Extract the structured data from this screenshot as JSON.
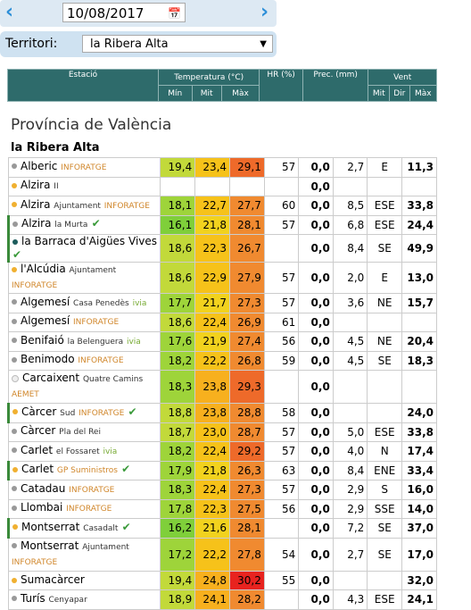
{
  "header": {
    "date": "10/08/2017",
    "territory_label": "Territori:",
    "territory": "la Ribera Alta"
  },
  "table": {
    "columns": {
      "station": "Estació",
      "temperature": "Temperatura (°C)",
      "humidity": "HR (%)",
      "precipitation": "Prec. (mm)",
      "wind": "Vent"
    },
    "subcolumns": [
      "Mín",
      "Mit",
      "Màx",
      "Mit",
      "Dir",
      "Màx"
    ],
    "province": "Província de València",
    "region": "la Ribera Alta",
    "rows": [
      {
        "name": "Alberic",
        "tag": "INFORATGE",
        "dot": "#999",
        "cells": [
          "19,4",
          "23,4",
          "29,1",
          "57",
          "0,0",
          "2,7",
          "E",
          "11,3"
        ]
      },
      {
        "name": "Alzira",
        "sub": "II",
        "dot": "#f0b030",
        "cells": [
          null,
          null,
          null,
          null,
          "0,0",
          null,
          null,
          null
        ]
      },
      {
        "name": "Alzira",
        "sub": "Ajuntament",
        "tag": "INFORATGE",
        "dot": "#f0b030",
        "cells": [
          "18,1",
          "22,7",
          "27,7",
          "60",
          "0,0",
          "8,5",
          "ESE",
          "33,8"
        ]
      },
      {
        "name": "Alzira",
        "sub": "la Murta",
        "check": true,
        "dot": "#999",
        "cells": [
          "16,1",
          "21,8",
          "28,1",
          "57",
          "0,0",
          "6,8",
          "ESE",
          "24,4"
        ]
      },
      {
        "name": "la Barraca d'Aigües Vives",
        "check": true,
        "dot": "#1d5c5c",
        "cells": [
          "18,6",
          "22,3",
          "26,7",
          null,
          "0,0",
          "8,4",
          "SE",
          "49,9"
        ]
      },
      {
        "name": "l'Alcúdia",
        "sub": "Ajuntament",
        "tag": "INFORATGE",
        "dot": "#f0b030",
        "cells": [
          "18,6",
          "22,9",
          "27,9",
          "57",
          "0,0",
          "2,0",
          "E",
          "13,0"
        ]
      },
      {
        "name": "Algemesí",
        "sub": "Casa Penedès",
        "tag": "ivia",
        "dot": "#999",
        "cells": [
          "17,7",
          "21,7",
          "27,3",
          "57",
          "0,0",
          "3,6",
          "NE",
          "15,7"
        ]
      },
      {
        "name": "Algemesí",
        "tag": "INFORATGE",
        "dot": "#999",
        "cells": [
          "18,6",
          "22,4",
          "26,9",
          "61",
          "0,0",
          null,
          null,
          null
        ]
      },
      {
        "name": "Benifaió",
        "sub": "la Belenguera",
        "tag": "ivia",
        "dot": "#999",
        "cells": [
          "17,6",
          "21,9",
          "27,4",
          "56",
          "0,0",
          "4,5",
          "NE",
          "20,4"
        ]
      },
      {
        "name": "Benimodo",
        "tag": "INFORATGE",
        "dot": "#999",
        "cells": [
          "18,2",
          "22,2",
          "26,8",
          "59",
          "0,0",
          "4,5",
          "SE",
          "18,3"
        ]
      },
      {
        "name": "Carcaixent",
        "sub": "Quatre Camins",
        "tag": "AEMET",
        "dot": "#eee",
        "tall": true,
        "cells": [
          "18,3",
          "23,8",
          "29,3",
          null,
          "0,0",
          null,
          null,
          null
        ]
      },
      {
        "name": "Càrcer",
        "sub": "Sud",
        "tag": "INFORATGE",
        "check": true,
        "dot": "#f0b030",
        "cells": [
          "18,8",
          "23,8",
          "28,8",
          "58",
          "0,0",
          null,
          null,
          "24,0"
        ]
      },
      {
        "name": "Càrcer",
        "sub": "Pla del Rei",
        "dot": "#999",
        "cells": [
          "18,7",
          "23,0",
          "28,7",
          "57",
          "0,0",
          "5,0",
          "ESE",
          "33,8"
        ]
      },
      {
        "name": "Carlet",
        "sub": "el Fossaret",
        "tag": "ivia",
        "dot": "#999",
        "cells": [
          "18,2",
          "22,4",
          "29,2",
          "57",
          "0,0",
          "4,0",
          "N",
          "17,4"
        ]
      },
      {
        "name": "Carlet",
        "tag": "GP Suministros",
        "check": true,
        "dot": "#f0b030",
        "cells": [
          "17,9",
          "21,8",
          "26,3",
          "63",
          "0,0",
          "8,4",
          "ENE",
          "33,4"
        ]
      },
      {
        "name": "Catadau",
        "tag": "INFORATGE",
        "dot": "#999",
        "cells": [
          "18,3",
          "22,4",
          "27,3",
          "57",
          "0,0",
          "2,9",
          "S",
          "16,0"
        ]
      },
      {
        "name": "Llombai",
        "tag": "INFORATGE",
        "dot": "#999",
        "cells": [
          "17,8",
          "22,3",
          "27,5",
          "56",
          "0,0",
          "2,9",
          "SSE",
          "14,0"
        ]
      },
      {
        "name": "Montserrat",
        "sub": "Casadalt",
        "check": true,
        "dot": "#f0b030",
        "cells": [
          "16,2",
          "21,6",
          "28,1",
          null,
          "0,0",
          "7,2",
          "SE",
          "37,0"
        ]
      },
      {
        "name": "Montserrat",
        "sub": "Ajuntament",
        "tag": "INFORATGE",
        "dot": "#999",
        "tall": true,
        "cells": [
          "17,2",
          "22,2",
          "27,8",
          "54",
          "0,0",
          "2,7",
          "SE",
          "17,0"
        ]
      },
      {
        "name": "Sumacàrcer",
        "dot": "#f0b030",
        "cells": [
          "19,4",
          "24,8",
          "30,2",
          "55",
          "0,0",
          null,
          null,
          "32,0"
        ]
      },
      {
        "name": "Turís",
        "sub": "Cenyapar",
        "dot": "#999",
        "cells": [
          "18,9",
          "24,1",
          "28,2",
          null,
          "0,0",
          "4,3",
          "ESE",
          "24,1"
        ]
      }
    ]
  }
}
